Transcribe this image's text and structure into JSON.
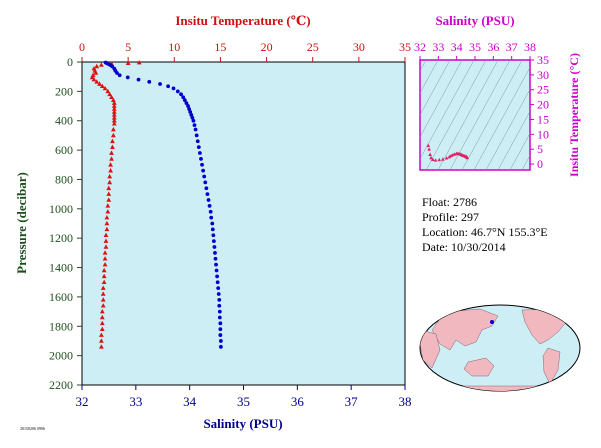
{
  "main_chart": {
    "top_axis_label": "Insitu Temperature (℃)",
    "bottom_axis_label": "Salinity (PSU)",
    "left_axis_label": "Pressure (decibar)",
    "temp_ticks": [
      "0",
      "5",
      "10",
      "15",
      "20",
      "25",
      "30",
      "35"
    ],
    "sal_ticks": [
      "32",
      "33",
      "34",
      "35",
      "36",
      "37",
      "38"
    ],
    "pres_ticks": [
      "0",
      "200",
      "400",
      "600",
      "800",
      "1000",
      "1200",
      "1400",
      "1600",
      "1800",
      "2000",
      "2200"
    ],
    "footer_small": "20150206 0906"
  },
  "ts_chart": {
    "top_axis_label": "Salinity (PSU)",
    "right_axis_label": "Insitu Temperature (°C)",
    "sal_ticks": [
      "32",
      "33",
      "34",
      "35",
      "36",
      "37",
      "38"
    ],
    "temp_ticks": [
      "35",
      "30",
      "25",
      "20",
      "15",
      "10",
      "5",
      "0"
    ]
  },
  "info": {
    "float_line": "Float:  2786",
    "profile_line": "Profile:  297",
    "location_line": "Location:  46.7°N  155.3°E",
    "date_line": "Date:  10/30/2014"
  },
  "colors": {
    "plot_bg": "#cdeef5",
    "temperature": "#dd1111",
    "salinity": "#0000cc",
    "ts_frame": "#cc00cc",
    "land": "#f2b8c0"
  },
  "chart_data": [
    {
      "type": "scatter",
      "title": "",
      "x_top_label": "Insitu Temperature (℃)",
      "x_bottom_label": "Salinity (PSU)",
      "ylabel": "Pressure (decibar)",
      "temp_xlim": [
        0,
        35
      ],
      "sal_xlim": [
        32,
        38
      ],
      "ylim": [
        2200,
        0
      ],
      "grid": false,
      "series": [
        {
          "name": "Insitu Temperature",
          "marker": "triangle",
          "points": [
            [
              6.2,
              4
            ],
            [
              5.0,
              8
            ],
            [
              3.2,
              12
            ],
            [
              2.1,
              20
            ],
            [
              1.6,
              30
            ],
            [
              1.3,
              45
            ],
            [
              1.4,
              60
            ],
            [
              1.5,
              75
            ],
            [
              1.2,
              90
            ],
            [
              1.1,
              105
            ],
            [
              1.3,
              120
            ],
            [
              1.6,
              135
            ],
            [
              1.9,
              150
            ],
            [
              2.2,
              165
            ],
            [
              2.5,
              180
            ],
            [
              2.8,
              200
            ],
            [
              3.0,
              220
            ],
            [
              3.2,
              240
            ],
            [
              3.4,
              260
            ],
            [
              3.5,
              280
            ],
            [
              3.5,
              300
            ],
            [
              3.5,
              320
            ],
            [
              3.5,
              340
            ],
            [
              3.5,
              360
            ],
            [
              3.5,
              380
            ],
            [
              3.5,
              400
            ],
            [
              3.5,
              420
            ],
            [
              3.4,
              460
            ],
            [
              3.4,
              500
            ],
            [
              3.3,
              540
            ],
            [
              3.3,
              580
            ],
            [
              3.2,
              620
            ],
            [
              3.2,
              660
            ],
            [
              3.1,
              700
            ],
            [
              3.1,
              740
            ],
            [
              3.0,
              780
            ],
            [
              3.0,
              820
            ],
            [
              2.9,
              860
            ],
            [
              2.9,
              900
            ],
            [
              2.9,
              940
            ],
            [
              2.8,
              980
            ],
            [
              2.8,
              1020
            ],
            [
              2.7,
              1060
            ],
            [
              2.7,
              1100
            ],
            [
              2.7,
              1140
            ],
            [
              2.6,
              1180
            ],
            [
              2.6,
              1220
            ],
            [
              2.6,
              1260
            ],
            [
              2.5,
              1300
            ],
            [
              2.5,
              1340
            ],
            [
              2.5,
              1380
            ],
            [
              2.4,
              1420
            ],
            [
              2.4,
              1460
            ],
            [
              2.4,
              1500
            ],
            [
              2.3,
              1540
            ],
            [
              2.3,
              1580
            ],
            [
              2.3,
              1620
            ],
            [
              2.3,
              1660
            ],
            [
              2.2,
              1700
            ],
            [
              2.2,
              1740
            ],
            [
              2.2,
              1780
            ],
            [
              2.2,
              1820
            ],
            [
              2.1,
              1860
            ],
            [
              2.1,
              1900
            ],
            [
              2.1,
              1940
            ]
          ]
        },
        {
          "name": "Salinity",
          "marker": "circle",
          "points": [
            [
              32.44,
              4
            ],
            [
              32.46,
              8
            ],
            [
              32.48,
              12
            ],
            [
              32.52,
              20
            ],
            [
              32.56,
              30
            ],
            [
              32.6,
              45
            ],
            [
              32.62,
              60
            ],
            [
              32.65,
              75
            ],
            [
              32.7,
              90
            ],
            [
              32.85,
              105
            ],
            [
              33.05,
              120
            ],
            [
              33.25,
              135
            ],
            [
              33.45,
              150
            ],
            [
              33.6,
              165
            ],
            [
              33.7,
              180
            ],
            [
              33.78,
              200
            ],
            [
              33.84,
              220
            ],
            [
              33.88,
              240
            ],
            [
              33.91,
              260
            ],
            [
              33.94,
              280
            ],
            [
              33.97,
              300
            ],
            [
              33.99,
              320
            ],
            [
              34.01,
              340
            ],
            [
              34.03,
              360
            ],
            [
              34.05,
              380
            ],
            [
              34.07,
              400
            ],
            [
              34.09,
              430
            ],
            [
              34.11,
              460
            ],
            [
              34.13,
              500
            ],
            [
              34.15,
              540
            ],
            [
              34.17,
              580
            ],
            [
              34.19,
              620
            ],
            [
              34.21,
              660
            ],
            [
              34.23,
              700
            ],
            [
              34.25,
              740
            ],
            [
              34.27,
              780
            ],
            [
              34.29,
              820
            ],
            [
              34.31,
              860
            ],
            [
              34.33,
              900
            ],
            [
              34.35,
              940
            ],
            [
              34.37,
              980
            ],
            [
              34.39,
              1020
            ],
            [
              34.4,
              1060
            ],
            [
              34.42,
              1100
            ],
            [
              34.43,
              1140
            ],
            [
              34.44,
              1180
            ],
            [
              34.45,
              1220
            ],
            [
              34.46,
              1260
            ],
            [
              34.47,
              1300
            ],
            [
              34.48,
              1340
            ],
            [
              34.49,
              1380
            ],
            [
              34.5,
              1420
            ],
            [
              34.51,
              1460
            ],
            [
              34.52,
              1500
            ],
            [
              34.53,
              1540
            ],
            [
              34.54,
              1580
            ],
            [
              34.55,
              1620
            ],
            [
              34.55,
              1660
            ],
            [
              34.56,
              1700
            ],
            [
              34.56,
              1740
            ],
            [
              34.57,
              1780
            ],
            [
              34.57,
              1820
            ],
            [
              34.57,
              1860
            ],
            [
              34.58,
              1900
            ],
            [
              34.58,
              1940
            ]
          ]
        }
      ]
    },
    {
      "type": "scatter",
      "title": "",
      "xlabel": "Salinity (PSU)",
      "ylabel": "Insitu Temperature (°C)",
      "xlim": [
        32,
        38
      ],
      "ylim": [
        -2,
        35
      ],
      "series": [
        {
          "marker": "triangle",
          "points": [
            [
              32.45,
              6.2
            ],
            [
              32.5,
              5.0
            ],
            [
              32.55,
              3.2
            ],
            [
              32.6,
              2.1
            ],
            [
              32.7,
              1.5
            ],
            [
              32.85,
              1.3
            ],
            [
              33.05,
              1.4
            ],
            [
              33.25,
              1.6
            ],
            [
              33.45,
              2.0
            ],
            [
              33.6,
              2.4
            ],
            [
              33.7,
              2.8
            ],
            [
              33.8,
              3.1
            ],
            [
              33.9,
              3.3
            ],
            [
              34.0,
              3.5
            ],
            [
              34.07,
              3.5
            ],
            [
              34.13,
              3.4
            ],
            [
              34.2,
              3.3
            ],
            [
              34.27,
              3.1
            ],
            [
              34.33,
              2.9
            ],
            [
              34.4,
              2.8
            ],
            [
              34.46,
              2.6
            ],
            [
              34.51,
              2.5
            ],
            [
              34.55,
              2.3
            ],
            [
              34.58,
              2.1
            ]
          ]
        }
      ]
    }
  ]
}
